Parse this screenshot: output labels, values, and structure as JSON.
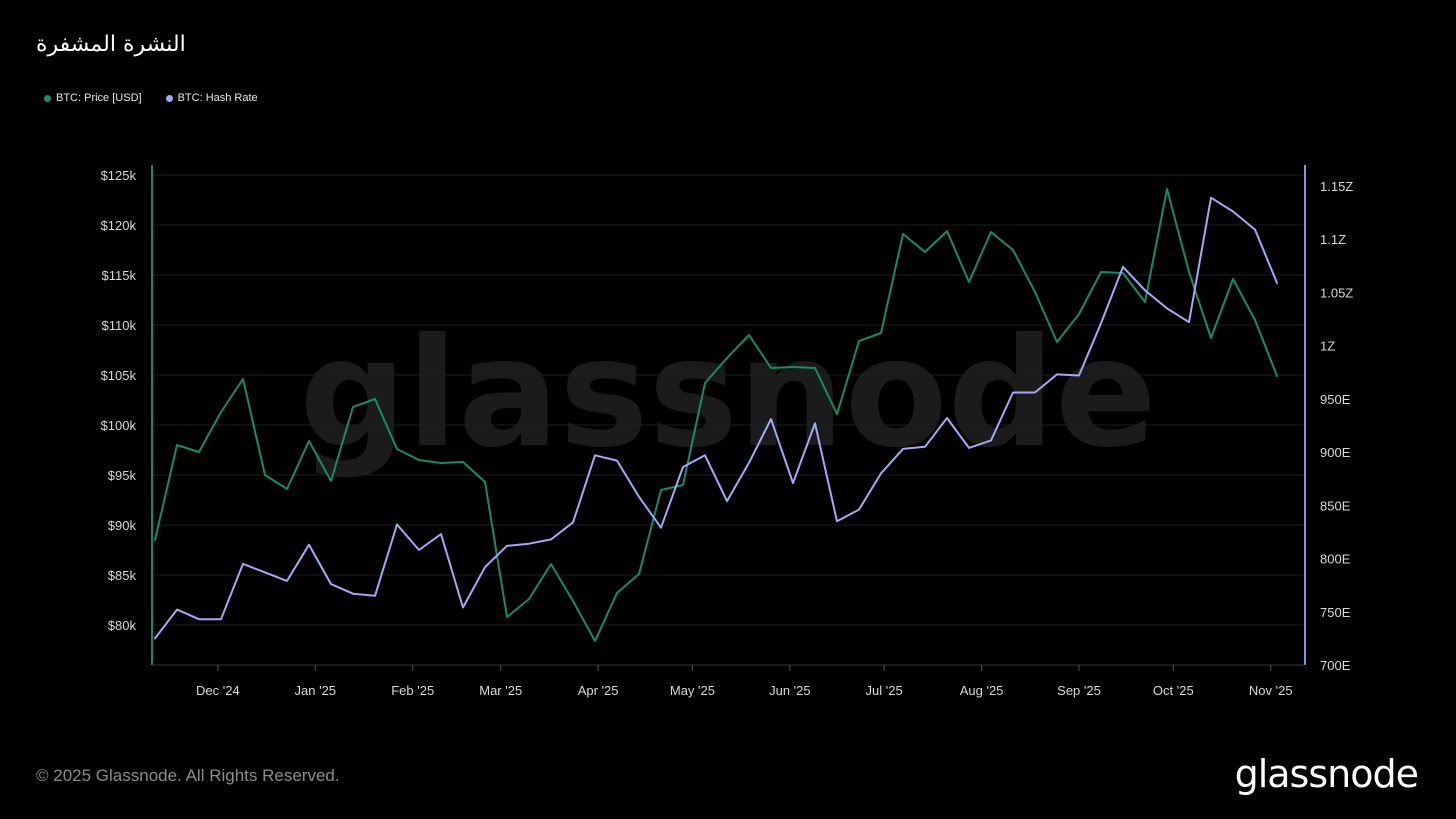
{
  "title": "النشرة المشفرة",
  "footer": "© 2025 Glassnode. All Rights Reserved.",
  "brand": "glassnode",
  "watermark": "glassnode",
  "chart_data": {
    "type": "line",
    "title": "النشرة المشفرة",
    "legend_placement": "top-left",
    "grid": true,
    "x_ticks": [
      "Dec '24",
      "Jan '25",
      "Feb '25",
      "Mar '25",
      "Apr '25",
      "May '25",
      "Jun '25",
      "Jul '25",
      "Aug '25",
      "Sep '25",
      "Oct '25",
      "Nov '25"
    ],
    "x_tick_dates": [
      "2024-12-01",
      "2025-01-01",
      "2025-02-01",
      "2025-03-01",
      "2025-04-01",
      "2025-05-01",
      "2025-06-01",
      "2025-07-01",
      "2025-08-01",
      "2025-09-01",
      "2025-10-01",
      "2025-11-01"
    ],
    "y_left": {
      "ticks": [
        "$80k",
        "$85k",
        "$90k",
        "$95k",
        "$100k",
        "$105k",
        "$110k",
        "$115k",
        "$120k",
        "$125k"
      ],
      "tick_values": [
        80000,
        85000,
        90000,
        95000,
        100000,
        105000,
        110000,
        115000,
        120000,
        125000
      ],
      "range": [
        76000,
        126000
      ]
    },
    "y_right": {
      "ticks": [
        "700E",
        "750E",
        "800E",
        "850E",
        "900E",
        "950E",
        "1Z",
        "1.05Z",
        "1.1Z",
        "1.15Z"
      ],
      "tick_values": [
        700,
        750,
        800,
        850,
        900,
        950,
        1000,
        1050,
        1100,
        1150
      ],
      "range": [
        700,
        1170
      ]
    },
    "x": [
      "2024-11-11",
      "2024-11-18",
      "2024-11-25",
      "2024-12-02",
      "2024-12-09",
      "2024-12-16",
      "2024-12-23",
      "2024-12-30",
      "2025-01-06",
      "2025-01-13",
      "2025-01-20",
      "2025-01-27",
      "2025-02-03",
      "2025-02-10",
      "2025-02-17",
      "2025-02-24",
      "2025-03-03",
      "2025-03-10",
      "2025-03-17",
      "2025-03-24",
      "2025-03-31",
      "2025-04-07",
      "2025-04-14",
      "2025-04-21",
      "2025-04-28",
      "2025-05-05",
      "2025-05-12",
      "2025-05-19",
      "2025-05-26",
      "2025-06-02",
      "2025-06-09",
      "2025-06-16",
      "2025-06-23",
      "2025-06-30",
      "2025-07-07",
      "2025-07-14",
      "2025-07-21",
      "2025-07-28",
      "2025-08-04",
      "2025-08-11",
      "2025-08-18",
      "2025-08-25",
      "2025-09-01",
      "2025-09-08",
      "2025-09-15",
      "2025-09-22",
      "2025-09-29",
      "2025-10-06",
      "2025-10-13",
      "2025-10-20",
      "2025-10-27",
      "2025-11-03"
    ],
    "series": [
      {
        "name": "BTC: Price [USD]",
        "axis": "left",
        "color": "#1a8a6a",
        "values": [
          88500,
          98000,
          97300,
          101300,
          104600,
          95000,
          93600,
          98400,
          94400,
          101800,
          102600,
          97600,
          96500,
          96200,
          96300,
          94300,
          80800,
          82600,
          86100,
          82400,
          78400,
          83200,
          85100,
          93500,
          94000,
          104200,
          106700,
          109000,
          105700,
          105800,
          105700,
          101100,
          108400,
          109200,
          119100,
          117300,
          119400,
          114300,
          119300,
          117500,
          113300,
          108300,
          111100,
          115300,
          115200,
          112300,
          123600,
          115300,
          108700,
          114600,
          110500,
          104900
        ]
      },
      {
        "name": "BTC: Hash Rate",
        "axis": "right",
        "color": "#a5a8f5",
        "values": [
          725,
          752,
          743,
          743,
          795,
          787,
          779,
          813,
          776,
          767,
          765,
          832,
          808,
          823,
          754,
          792,
          812,
          814,
          818,
          834,
          897,
          892,
          858,
          829,
          886,
          897,
          854,
          890,
          931,
          871,
          927,
          835,
          846,
          880,
          903,
          905,
          932,
          904,
          911,
          956,
          956,
          973,
          972,
          1021,
          1074,
          1052,
          1035,
          1022,
          1139,
          1126,
          1109,
          1059
        ]
      }
    ]
  }
}
